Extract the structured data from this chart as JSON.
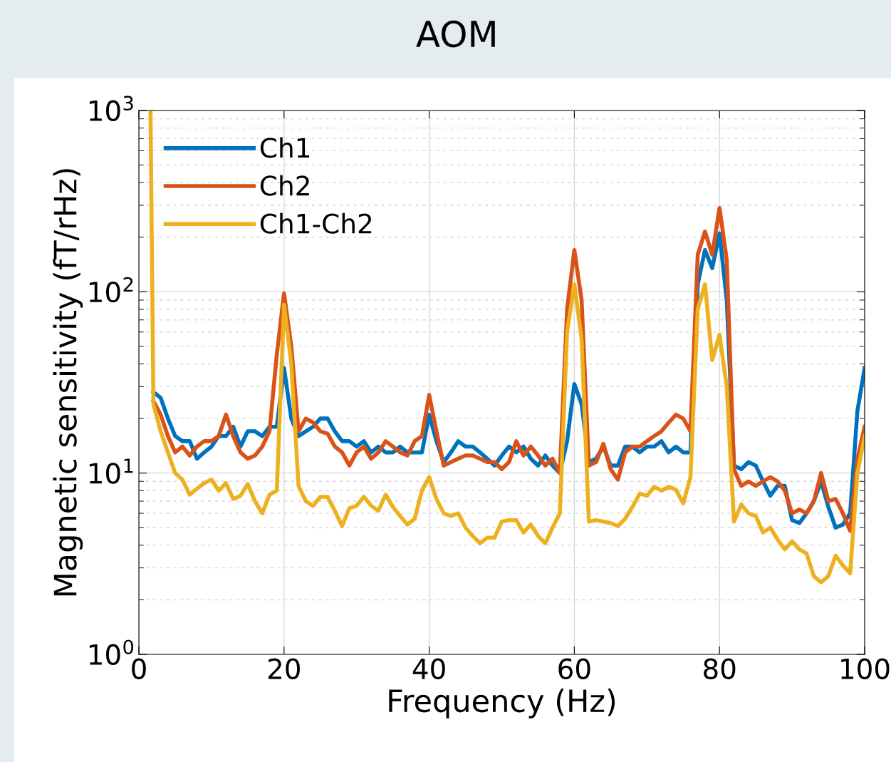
{
  "chart_data": {
    "type": "line",
    "title": "AOM",
    "xlabel": "Frequency (Hz)",
    "ylabel": "Magnetic sensitivity (fT/rHz)",
    "log": "y",
    "grid": true,
    "legend": "top left",
    "line_style": "solid",
    "xlim": [
      0,
      100
    ],
    "xticks": [
      0,
      20,
      40,
      60,
      80,
      100
    ],
    "ylim": [
      1,
      1000
    ],
    "yticks": [
      {
        "value": 1,
        "label": "10$^{0}$"
      },
      {
        "value": 10,
        "label": "10$^{1}$"
      },
      {
        "value": 100,
        "label": "10$^{2}$"
      },
      {
        "value": 1000,
        "label": "10$^{3}$"
      }
    ],
    "series": [
      {
        "name": "Ch1",
        "color": "#0072bd",
        "x": [
          2,
          3,
          4,
          5,
          6,
          7,
          8,
          9,
          10,
          11,
          12,
          13,
          14,
          15,
          16,
          17,
          18,
          19,
          20,
          21,
          22,
          23,
          24,
          25,
          26,
          27,
          28,
          29,
          30,
          31,
          32,
          33,
          34,
          35,
          36,
          37,
          38,
          39,
          40,
          41,
          42,
          43,
          44,
          45,
          46,
          47,
          48,
          49,
          50,
          51,
          52,
          53,
          54,
          55,
          56,
          57,
          58,
          59,
          60,
          61,
          62,
          63,
          64,
          65,
          66,
          67,
          68,
          69,
          70,
          71,
          72,
          73,
          74,
          75,
          76,
          77,
          78,
          79,
          80,
          81,
          82,
          83,
          84,
          85,
          86,
          87,
          88,
          89,
          90,
          91,
          92,
          93,
          94,
          95,
          96,
          97,
          98,
          99,
          100
        ],
        "values": [
          28,
          26,
          20,
          16,
          15,
          15,
          12,
          13,
          14,
          16,
          16,
          18,
          14,
          17,
          17,
          16,
          18,
          18,
          38,
          20,
          16,
          17,
          18,
          20,
          20,
          17,
          15,
          15,
          14,
          15,
          13,
          14,
          13,
          13,
          14,
          13,
          13,
          13,
          21,
          15,
          11.5,
          13,
          15,
          14,
          14,
          13,
          12,
          11,
          12.5,
          14,
          13,
          14,
          12,
          11,
          12.5,
          11,
          10,
          15,
          31,
          24,
          11.5,
          12,
          14,
          11,
          11,
          14,
          14,
          13,
          14,
          14,
          15,
          13,
          14,
          13,
          13,
          110,
          170,
          135,
          210,
          90,
          11,
          10.5,
          11.5,
          11,
          9,
          7.5,
          8.5,
          8.5,
          5.5,
          5.3,
          6,
          7,
          9,
          6.5,
          5,
          5.2,
          6,
          22,
          38
        ]
      },
      {
        "name": "Ch2",
        "color": "#d95319",
        "x": [
          2,
          3,
          4,
          5,
          6,
          7,
          8,
          9,
          10,
          11,
          12,
          13,
          14,
          15,
          16,
          17,
          18,
          19,
          20,
          21,
          22,
          23,
          24,
          25,
          26,
          27,
          28,
          29,
          30,
          31,
          32,
          33,
          34,
          35,
          36,
          37,
          38,
          39,
          40,
          41,
          42,
          43,
          44,
          45,
          46,
          47,
          48,
          49,
          50,
          51,
          52,
          53,
          54,
          55,
          56,
          57,
          58,
          59,
          60,
          61,
          62,
          63,
          64,
          65,
          66,
          67,
          68,
          69,
          70,
          71,
          72,
          73,
          74,
          75,
          76,
          77,
          78,
          79,
          80,
          81,
          82,
          83,
          84,
          85,
          86,
          87,
          88,
          89,
          90,
          91,
          92,
          93,
          94,
          95,
          96,
          97,
          98,
          99,
          100
        ],
        "values": [
          25,
          21,
          16,
          13,
          14,
          12.5,
          14,
          15,
          15,
          16,
          21,
          16,
          13,
          12,
          12.5,
          14,
          17,
          45,
          98,
          50,
          17,
          20,
          19,
          17,
          16.5,
          14,
          13,
          11,
          13,
          14,
          12,
          13,
          15,
          14,
          13,
          12.5,
          15,
          16,
          27,
          17,
          11,
          11.5,
          12,
          12.5,
          12.5,
          12,
          11.5,
          11.5,
          10.5,
          11.5,
          15,
          12.5,
          14,
          12.5,
          11,
          12,
          10,
          80,
          170,
          90,
          11,
          11.5,
          14.5,
          10.5,
          9.2,
          13,
          14,
          14,
          15,
          16,
          17,
          19,
          21,
          20,
          17,
          160,
          215,
          160,
          290,
          150,
          10.5,
          8.5,
          9,
          8.5,
          9,
          9.5,
          9,
          8,
          6,
          6.3,
          6,
          7,
          10,
          7,
          7.2,
          6,
          4.8,
          12,
          18
        ]
      },
      {
        "name": "Ch1-Ch2",
        "color": "#edb120",
        "x": [
          1.6,
          2,
          3,
          4,
          5,
          6,
          7,
          8,
          9,
          10,
          11,
          12,
          13,
          14,
          15,
          16,
          17,
          18,
          19,
          20,
          21,
          22,
          23,
          24,
          25,
          26,
          27,
          28,
          29,
          30,
          31,
          32,
          33,
          34,
          35,
          36,
          37,
          38,
          39,
          40,
          41,
          42,
          43,
          44,
          45,
          46,
          47,
          48,
          49,
          50,
          51,
          52,
          53,
          54,
          55,
          56,
          57,
          58,
          59,
          60,
          61,
          62,
          63,
          64,
          65,
          66,
          67,
          68,
          69,
          70,
          71,
          72,
          73,
          74,
          75,
          76,
          77,
          78,
          79,
          80,
          81,
          82,
          83,
          84,
          85,
          86,
          87,
          88,
          89,
          90,
          91,
          92,
          93,
          94,
          95,
          96,
          97,
          98,
          99,
          100
        ],
        "values": [
          1000,
          24,
          17,
          13,
          10,
          9.2,
          7.6,
          8.2,
          8.8,
          9.2,
          8,
          8.8,
          7.2,
          7.5,
          8.7,
          7,
          6,
          7.6,
          8,
          85,
          40,
          8.5,
          7,
          6.6,
          7.4,
          7.4,
          6.2,
          5.1,
          6.4,
          6.6,
          7.4,
          6.6,
          6.2,
          7.6,
          6.5,
          5.8,
          5.2,
          5.6,
          8,
          9.5,
          7.2,
          6,
          5.8,
          6,
          5,
          4.5,
          4.1,
          4.4,
          4.4,
          5.4,
          5.5,
          5.5,
          4.7,
          5.2,
          4.5,
          4.1,
          5,
          6,
          60,
          110,
          55,
          5.4,
          5.5,
          5.4,
          5.3,
          5.1,
          5.6,
          6.5,
          7.7,
          7.5,
          8.4,
          8,
          8.4,
          8.1,
          6.8,
          9.5,
          80,
          110,
          42,
          58,
          30,
          5.4,
          6.7,
          6,
          5.8,
          4.7,
          5,
          4.3,
          3.8,
          4.2,
          3.8,
          3.6,
          2.7,
          2.5,
          2.7,
          3.5,
          3.1,
          2.8,
          10,
          16
        ]
      }
    ]
  }
}
